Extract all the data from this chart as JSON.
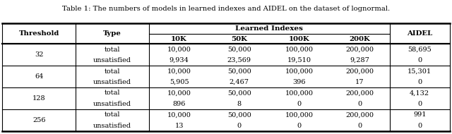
{
  "title": "Table 1: The numbers of models in learned indexes and AIDEL on the dataset of lognormal.",
  "rows": [
    [
      "32",
      "total",
      "10,000",
      "50,000",
      "100,000",
      "200,000",
      "58,695"
    ],
    [
      "",
      "unsatisfied",
      "9,934",
      "23,569",
      "19,510",
      "9,287",
      "0"
    ],
    [
      "64",
      "total",
      "10,000",
      "50,000",
      "100,000",
      "200,000",
      "15,301"
    ],
    [
      "",
      "unsatisfied",
      "5,905",
      "2,467",
      "396",
      "17",
      "0"
    ],
    [
      "128",
      "total",
      "10,000",
      "50,000",
      "100,000",
      "200,000",
      "4,132"
    ],
    [
      "",
      "unsatisfied",
      "896",
      "8",
      "0",
      "0",
      "0"
    ],
    [
      "256",
      "total",
      "10,000",
      "50,000",
      "100,000",
      "200,000",
      "991"
    ],
    [
      "",
      "unsatisfied",
      "13",
      "0",
      "0",
      "0",
      "0"
    ]
  ],
  "background_color": "#ffffff",
  "fontsize": 7.0,
  "title_fontsize": 7.2
}
